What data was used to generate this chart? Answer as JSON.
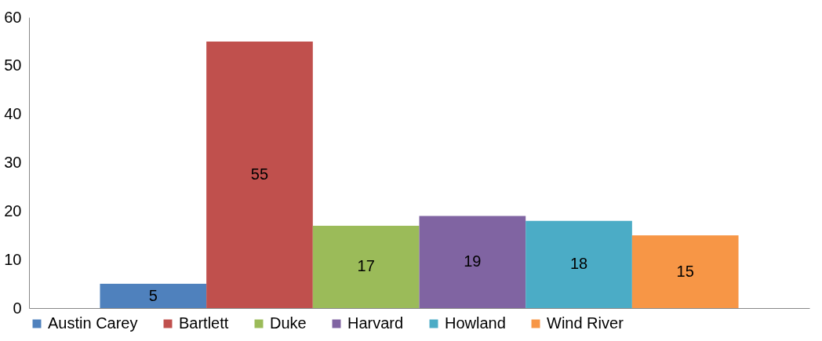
{
  "chart_data": {
    "type": "bar",
    "categories": [
      null
    ],
    "series": [
      {
        "name": "Austin Carey",
        "color": "#4f81bd",
        "values": [
          5
        ]
      },
      {
        "name": "Bartlett",
        "color": "#c0504d",
        "values": [
          55
        ]
      },
      {
        "name": "Duke",
        "color": "#9bbb59",
        "values": [
          17
        ]
      },
      {
        "name": "Harvard",
        "color": "#8064a2",
        "values": [
          19
        ]
      },
      {
        "name": "Howland",
        "color": "#4bacc6",
        "values": [
          18
        ]
      },
      {
        "name": "Wind River",
        "color": "#f79646",
        "values": [
          15
        ]
      }
    ],
    "ylim": [
      0,
      60
    ],
    "yticks": [
      0,
      10,
      20,
      30,
      40,
      50,
      60
    ],
    "data_labels": true,
    "legend": "bottom",
    "grid": false
  }
}
